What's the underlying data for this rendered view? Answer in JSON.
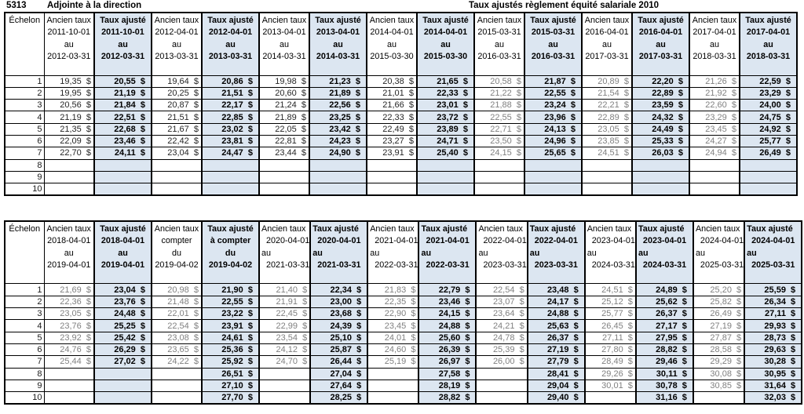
{
  "page": {
    "code": "5313",
    "position_title": "Adjointe à la direction",
    "main_title": "Taux ajustés règlement équité salariale 2010"
  },
  "colors": {
    "adjusted_col_bg": "#dce6f1",
    "old_rate_grey": "#808080"
  },
  "tables": [
    {
      "name": "rates-2011-2018",
      "echelon_header": "Échelon",
      "columns": [
        {
          "kind": "ancien",
          "align": "center",
          "grey": false,
          "lines": [
            "Ancien taux",
            "2011-10-01",
            "au",
            "2012-03-31"
          ]
        },
        {
          "kind": "ajuste",
          "align": "center",
          "lines": [
            "Taux ajusté",
            "2011-10-01",
            "au",
            "2012-03-31"
          ]
        },
        {
          "kind": "ancien",
          "align": "center",
          "grey": false,
          "lines": [
            "Ancien taux",
            "2012-04-01",
            "au",
            "2013-03-31"
          ]
        },
        {
          "kind": "ajuste",
          "align": "center",
          "lines": [
            "Taux ajusté",
            "2012-04-01",
            "au",
            "2013-03-31"
          ]
        },
        {
          "kind": "ancien",
          "align": "center",
          "grey": false,
          "lines": [
            "Ancien taux",
            "2013-04-01",
            "au",
            "2014-03-31"
          ]
        },
        {
          "kind": "ajuste",
          "align": "center",
          "lines": [
            "Taux ajusté",
            "2013-04-01",
            "au",
            "2014-03-31"
          ]
        },
        {
          "kind": "ancien",
          "align": "center",
          "grey": false,
          "lines": [
            "Ancien taux",
            "2014-04-01",
            "au",
            "2015-03-30"
          ]
        },
        {
          "kind": "ajuste",
          "align": "center",
          "lines": [
            "Taux ajusté",
            "2014-04-01",
            "au",
            "2015-03-30"
          ]
        },
        {
          "kind": "ancien",
          "align": "center",
          "grey": true,
          "lines": [
            "Ancien taux",
            "2015-03-31",
            "au",
            "2016-03-31"
          ]
        },
        {
          "kind": "ajuste",
          "align": "center",
          "lines": [
            "Taux ajusté",
            "2015-03-31",
            "au",
            "2016-03-31"
          ]
        },
        {
          "kind": "ancien",
          "align": "center",
          "grey": true,
          "lines": [
            "Ancien taux",
            "2016-04-01",
            "au",
            "2017-03-31"
          ]
        },
        {
          "kind": "ajuste",
          "align": "center",
          "lines": [
            "Taux ajusté",
            "2016-04-01",
            "au",
            "2017-03-31"
          ]
        },
        {
          "kind": "ancien",
          "align": "center",
          "grey": true,
          "lines": [
            "Ancien taux",
            "2017-04-01",
            "au",
            "2018-03-31"
          ]
        },
        {
          "kind": "ajuste",
          "align": "center",
          "lines": [
            "Taux ajusté",
            "2017-04-01",
            "au",
            "2018-03-31"
          ]
        }
      ],
      "rows": [
        {
          "echelon": "1",
          "cells": [
            "19,35  $",
            "20,55  $",
            "19,64  $",
            "20,86  $",
            "19,98  $",
            "21,23  $",
            "20,38  $",
            "21,65  $",
            "20,58  $",
            "21,87  $",
            "20,89  $",
            "22,20  $",
            "21,26  $",
            "22,59  $"
          ]
        },
        {
          "echelon": "2",
          "cells": [
            "19,95  $",
            "21,19  $",
            "20,25  $",
            "21,51  $",
            "20,60  $",
            "21,89  $",
            "21,01  $",
            "22,33  $",
            "21,22  $",
            "22,55  $",
            "21,54  $",
            "22,89  $",
            "21,92  $",
            "23,29  $"
          ]
        },
        {
          "echelon": "3",
          "cells": [
            "20,56  $",
            "21,84  $",
            "20,87  $",
            "22,17  $",
            "21,24  $",
            "22,56  $",
            "21,66  $",
            "23,01  $",
            "21,88  $",
            "23,24  $",
            "22,21  $",
            "23,59  $",
            "22,60  $",
            "24,00  $"
          ]
        },
        {
          "echelon": "4",
          "cells": [
            "21,19  $",
            "22,51  $",
            "21,51  $",
            "22,85  $",
            "21,89  $",
            "23,25  $",
            "22,33  $",
            "23,72  $",
            "22,55  $",
            "23,96  $",
            "22,89  $",
            "24,32  $",
            "23,29  $",
            "24,75  $"
          ]
        },
        {
          "echelon": "5",
          "cells": [
            "21,35  $",
            "22,68  $",
            "21,67  $",
            "23,02  $",
            "22,05  $",
            "23,42  $",
            "22,49  $",
            "23,89  $",
            "22,71  $",
            "24,13  $",
            "23,05  $",
            "24,49  $",
            "23,45  $",
            "24,92  $"
          ]
        },
        {
          "echelon": "6",
          "cells": [
            "22,09  $",
            "23,46  $",
            "22,42  $",
            "23,81  $",
            "22,81  $",
            "24,23  $",
            "23,27  $",
            "24,71  $",
            "23,50  $",
            "24,96  $",
            "23,85  $",
            "25,33  $",
            "24,27  $",
            "25,77  $"
          ]
        },
        {
          "echelon": "7",
          "cells": [
            "22,70  $",
            "24,11  $",
            "23,04  $",
            "24,47  $",
            "23,44  $",
            "24,90  $",
            "23,91  $",
            "25,40  $",
            "24,15  $",
            "25,65  $",
            "24,51  $",
            "26,03  $",
            "24,94  $",
            "26,49  $"
          ]
        },
        {
          "echelon": "8",
          "cells": [
            "",
            "",
            "",
            "",
            "",
            "",
            "",
            "",
            "",
            "",
            "",
            "",
            "",
            ""
          ]
        },
        {
          "echelon": "9",
          "cells": [
            "",
            "",
            "",
            "",
            "",
            "",
            "",
            "",
            "",
            "",
            "",
            "",
            "",
            ""
          ]
        },
        {
          "echelon": "10",
          "cells": [
            "",
            "",
            "",
            "",
            "",
            "",
            "",
            "",
            "",
            "",
            "",
            "",
            "",
            ""
          ]
        }
      ]
    },
    {
      "name": "rates-2018-2025",
      "echelon_header": "Échelon",
      "columns": [
        {
          "kind": "ancien",
          "align": "center",
          "grey": true,
          "lines": [
            "Ancien taux",
            "2018-04-01",
            "au",
            "2019-04-01"
          ]
        },
        {
          "kind": "ajuste",
          "align": "center",
          "lines": [
            "Taux ajusté",
            "2018-04-01",
            "au",
            "2019-04-01"
          ]
        },
        {
          "kind": "ancien",
          "align": "center",
          "grey": true,
          "lines": [
            "Ancien taux",
            "compter",
            "du",
            "2019-04-02"
          ]
        },
        {
          "kind": "ajuste",
          "align": "center",
          "lines": [
            "Taux ajusté",
            "à compter",
            "du",
            "2019-04-02"
          ]
        },
        {
          "kind": "ancien",
          "align": "left",
          "grey": true,
          "lines": [
            "Ancien taux",
            "  2020-04-01",
            "au",
            "  2021-03-31"
          ]
        },
        {
          "kind": "ajuste",
          "align": "left",
          "lines": [
            "Taux ajusté",
            "  2020-04-01",
            "au",
            "  2021-03-31"
          ]
        },
        {
          "kind": "ancien",
          "align": "left",
          "grey": true,
          "lines": [
            "Ancien taux",
            "  2021-04-01",
            "au",
            "  2022-03-31"
          ]
        },
        {
          "kind": "ajuste",
          "align": "left",
          "lines": [
            "Taux ajusté",
            "  2021-04-01",
            "au",
            "  2022-03-31"
          ]
        },
        {
          "kind": "ancien",
          "align": "left",
          "grey": true,
          "lines": [
            "Ancien taux",
            "  2022-04-01",
            "au",
            "  2023-03-31"
          ]
        },
        {
          "kind": "ajuste",
          "align": "left",
          "lines": [
            "Taux ajusté",
            "  2022-04-01",
            "au",
            "  2023-03-31"
          ]
        },
        {
          "kind": "ancien",
          "align": "left",
          "grey": true,
          "lines": [
            "Ancien taux",
            "  2023-04-01",
            "au",
            "  2024-03-31"
          ]
        },
        {
          "kind": "ajuste",
          "align": "left",
          "lines": [
            "Taux ajusté",
            "  2023-04-01",
            "au",
            "  2024-03-31"
          ]
        },
        {
          "kind": "ancien",
          "align": "left",
          "grey": true,
          "lines": [
            "Ancien taux",
            "  2024-04-01",
            "au",
            "  2025-03-31"
          ]
        },
        {
          "kind": "ajuste",
          "align": "left",
          "lines": [
            "Taux ajusté",
            "  2024-04-01",
            "au",
            "  2025-03-31"
          ]
        }
      ],
      "rows": [
        {
          "echelon": "1",
          "cells": [
            "21,69  $",
            "23,04  $",
            "20,98  $",
            "21,90  $",
            "21,40  $",
            "22,34  $",
            "21,83  $",
            "22,79  $",
            "22,54  $",
            "23,48  $",
            "24,51  $",
            "24,89  $",
            "25,20  $",
            "25,59  $"
          ]
        },
        {
          "echelon": "2",
          "cells": [
            "22,36  $",
            "23,76  $",
            "21,48  $",
            "22,55  $",
            "21,91  $",
            "23,00  $",
            "22,35  $",
            "23,46  $",
            "23,07  $",
            "24,17  $",
            "25,12  $",
            "25,62  $",
            "25,82  $",
            "26,34  $"
          ]
        },
        {
          "echelon": "3",
          "cells": [
            "23,05  $",
            "24,48  $",
            "22,01  $",
            "23,22  $",
            "22,45  $",
            "23,68  $",
            "22,90  $",
            "24,15  $",
            "23,64  $",
            "24,88  $",
            "25,77  $",
            "26,37  $",
            "26,49  $",
            "27,11  $"
          ]
        },
        {
          "echelon": "4",
          "cells": [
            "23,76  $",
            "25,25  $",
            "22,54  $",
            "23,91  $",
            "22,99  $",
            "24,39  $",
            "23,45  $",
            "24,88  $",
            "24,21  $",
            "25,63  $",
            "26,45  $",
            "27,17  $",
            "27,19  $",
            "29,93  $"
          ]
        },
        {
          "echelon": "5",
          "cells": [
            "23,92  $",
            "25,42  $",
            "23,08  $",
            "24,61  $",
            "23,54  $",
            "25,10  $",
            "24,01  $",
            "25,60  $",
            "24,78  $",
            "26,37  $",
            "27,11  $",
            "27,95  $",
            "27,87  $",
            "28,73  $"
          ]
        },
        {
          "echelon": "6",
          "cells": [
            "24,76  $",
            "26,29  $",
            "23,65  $",
            "25,36  $",
            "24,12  $",
            "25,87  $",
            "24,60  $",
            "26,39  $",
            "25,39  $",
            "27,19  $",
            "27,80  $",
            "28,82  $",
            "28,58  $",
            "29,63  $"
          ]
        },
        {
          "echelon": "7",
          "cells": [
            "25,44  $",
            "27,02  $",
            "24,22  $",
            "25,92  $",
            "24,70  $",
            "26,44  $",
            "25,19  $",
            "26,97  $",
            "26,00  $",
            "27,79  $",
            "28,49  $",
            "29,46  $",
            "29,29  $",
            "30,28  $"
          ]
        },
        {
          "echelon": "8",
          "cells": [
            "",
            "",
            "",
            "26,51  $",
            "",
            "27,04  $",
            "",
            "27,58  $",
            "",
            "28,41  $",
            "29,26  $",
            "30,11  $",
            "30,08  $",
            "30,95  $"
          ]
        },
        {
          "echelon": "9",
          "cells": [
            "",
            "",
            "",
            "27,10  $",
            "",
            "27,64  $",
            "",
            "28,19  $",
            "",
            "29,04  $",
            "30,01  $",
            "30,78  $",
            "30,85  $",
            "31,64  $"
          ]
        },
        {
          "echelon": "10",
          "cells": [
            "",
            "",
            "",
            "27,70  $",
            "",
            "28,25  $",
            "",
            "28,82  $",
            "",
            "29,40  $",
            "",
            "31,16  $",
            "",
            "32,03  $"
          ]
        }
      ]
    }
  ]
}
